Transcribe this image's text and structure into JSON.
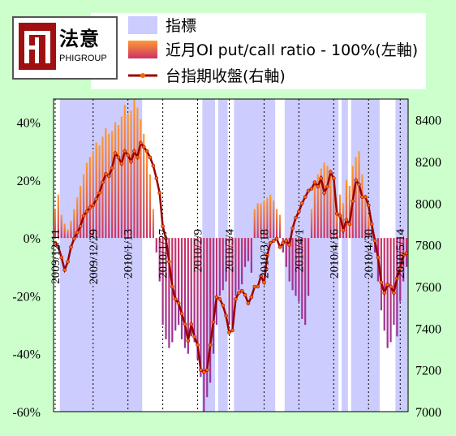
{
  "logo": {
    "name_cn": "法意",
    "name_en": "PHIGROUP"
  },
  "colors": {
    "background": "#ccffcc",
    "plot_bg": "#ffffff",
    "index_band": "#ccccff",
    "ratio_top": "#ff9933",
    "ratio_bottom": "#993399",
    "close_line": "#990000",
    "close_marker": "#ff6600"
  },
  "chart_data": {
    "type": "bar",
    "legend": [
      {
        "key": "index_band",
        "label": "指標"
      },
      {
        "key": "ratio",
        "label": "近月OI put/call ratio - 100%(左軸)"
      },
      {
        "key": "close",
        "label": "台指期收盤(右軸)"
      }
    ],
    "legend_position": "top",
    "left_axis": {
      "ticks": [
        "40%",
        "20%",
        "0%",
        "-20%",
        "-40%",
        "-60%"
      ],
      "values": [
        40,
        20,
        0,
        -20,
        -40,
        -60
      ],
      "range": [
        -60,
        48
      ]
    },
    "right_axis": {
      "ticks": [
        "8400",
        "8200",
        "8000",
        "7800",
        "7600",
        "7400",
        "7200",
        "7000"
      ],
      "values": [
        8400,
        8200,
        8000,
        7800,
        7600,
        7400,
        7200,
        7000
      ],
      "range": [
        7000,
        8500
      ]
    },
    "x_labels": [
      "2009/12/11",
      "2009/12/29",
      "2010/1/13",
      "2010/1/27",
      "2010/2/9",
      "2010/3/4",
      "2010/3/18",
      "2010/4/1",
      "2010/4/16",
      "2010/4/30",
      "2010/5/14"
    ],
    "x_label_index": [
      0,
      12,
      23,
      34,
      45,
      55,
      66,
      77,
      88,
      99,
      109
    ],
    "n_days": 112,
    "index_bands": [
      [
        2,
        27
      ],
      [
        47,
        50
      ],
      [
        52,
        54
      ],
      [
        57,
        69
      ],
      [
        73,
        89
      ],
      [
        91,
        92
      ],
      [
        94,
        102
      ],
      [
        108,
        111
      ]
    ],
    "close_series": [
      7810,
      7790,
      7740,
      7680,
      7720,
      7790,
      7830,
      7860,
      7890,
      7940,
      7960,
      7980,
      7990,
      8020,
      8050,
      8100,
      8140,
      8130,
      8170,
      8240,
      8220,
      8190,
      8250,
      8230,
      8200,
      8250,
      8220,
      8290,
      8270,
      8250,
      8220,
      8180,
      8120,
      8050,
      7890,
      7830,
      7720,
      7600,
      7540,
      7520,
      7470,
      7420,
      7340,
      7420,
      7360,
      7320,
      7200,
      7190,
      7200,
      7320,
      7430,
      7550,
      7540,
      7510,
      7460,
      7380,
      7390,
      7540,
      7570,
      7580,
      7560,
      7520,
      7550,
      7600,
      7600,
      7650,
      7620,
      7750,
      7810,
      7820,
      7830,
      7790,
      7810,
      7820,
      7800,
      7880,
      7930,
      7960,
      8000,
      8030,
      8060,
      8070,
      8100,
      8080,
      8120,
      8050,
      8080,
      8150,
      8120,
      7950,
      7940,
      7870,
      7920,
      7900,
      8010,
      8110,
      8090,
      8030,
      8030,
      7990,
      7900,
      7820,
      7740,
      7620,
      7570,
      7610,
      7600,
      7570,
      7640,
      7690,
      7750,
      7760
    ],
    "ratio_series": [
      10,
      15,
      8,
      5,
      3,
      6,
      10,
      14,
      18,
      22,
      26,
      28,
      30,
      33,
      32,
      35,
      38,
      36,
      37,
      40,
      39,
      42,
      46,
      43,
      44,
      48,
      45,
      41,
      36,
      30,
      22,
      10,
      -5,
      -15,
      -30,
      -35,
      -38,
      -36,
      -32,
      -30,
      -35,
      -38,
      -40,
      -34,
      -36,
      -42,
      -48,
      -60,
      -55,
      -50,
      -40,
      -30,
      -20,
      -18,
      -15,
      -30,
      -32,
      -20,
      -18,
      -16,
      -10,
      -8,
      -12,
      10,
      12,
      12,
      13,
      14,
      15,
      13,
      10,
      8,
      -5,
      -10,
      -15,
      -18,
      -20,
      -22,
      -28,
      -30,
      -20,
      10,
      20,
      22,
      24,
      26,
      25,
      22,
      18,
      10,
      15,
      12,
      20,
      18,
      25,
      28,
      30,
      22,
      15,
      8,
      5,
      -5,
      -15,
      -25,
      -32,
      -38,
      -36,
      -30,
      -34,
      -22,
      -15,
      -10
    ]
  }
}
